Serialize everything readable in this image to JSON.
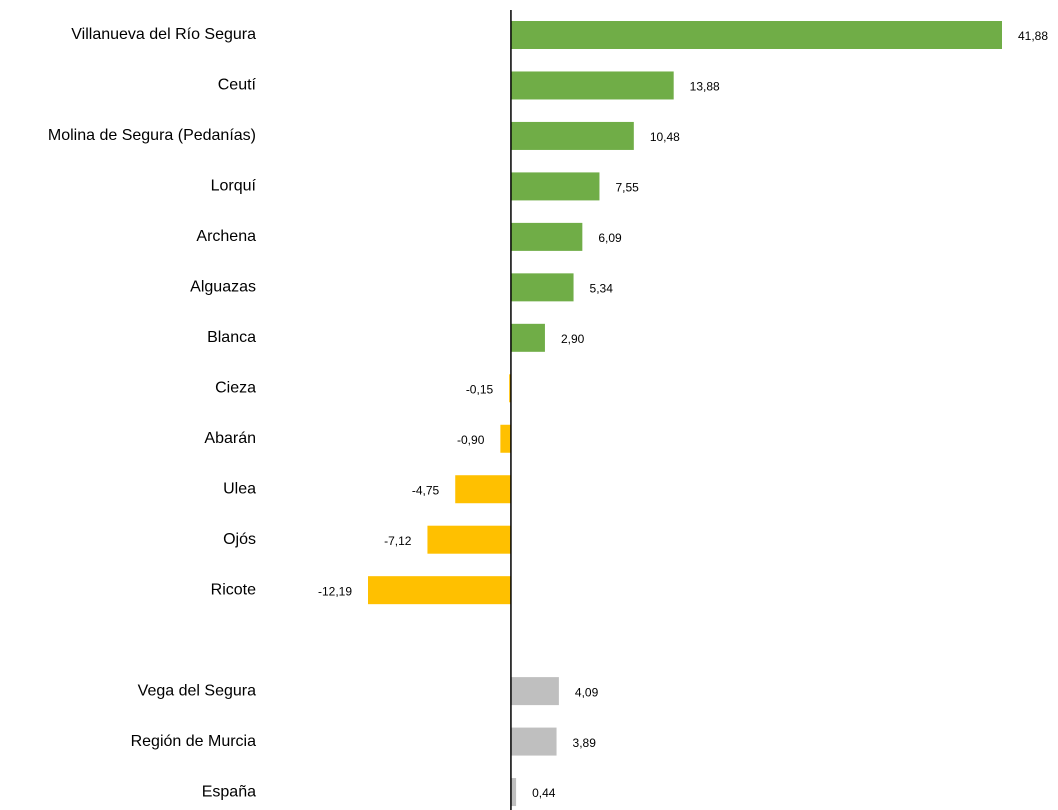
{
  "chart_data": {
    "type": "bar",
    "orientation": "horizontal",
    "categories": [
      "Villanueva del Río Segura",
      "Ceutí",
      "Molina de Segura (Pedanías)",
      "Lorquí",
      "Archena",
      "Alguazas",
      "Blanca",
      "Cieza",
      "Abarán",
      "Ulea",
      "Ojós",
      "Ricote",
      null,
      "Vega del Segura",
      "Región de Murcia",
      "España"
    ],
    "values": [
      41.88,
      13.88,
      10.48,
      7.55,
      6.09,
      5.34,
      2.9,
      -0.15,
      -0.9,
      -4.75,
      -7.12,
      -12.19,
      null,
      4.09,
      3.89,
      0.44
    ],
    "value_labels": [
      "41,88",
      "13,88",
      "10,48",
      "7,55",
      "6,09",
      "5,34",
      "2,90",
      "-0,15",
      "-0,90",
      "-4,75",
      "-7,12",
      "-12,19",
      null,
      "4,09",
      "3,89",
      "0,44"
    ],
    "colors": [
      "#70ad47",
      "#70ad47",
      "#70ad47",
      "#70ad47",
      "#70ad47",
      "#70ad47",
      "#70ad47",
      "#ffc000",
      "#ffc000",
      "#ffc000",
      "#ffc000",
      "#ffc000",
      null,
      "#bfbfbf",
      "#bfbfbf",
      "#bfbfbf"
    ]
  }
}
